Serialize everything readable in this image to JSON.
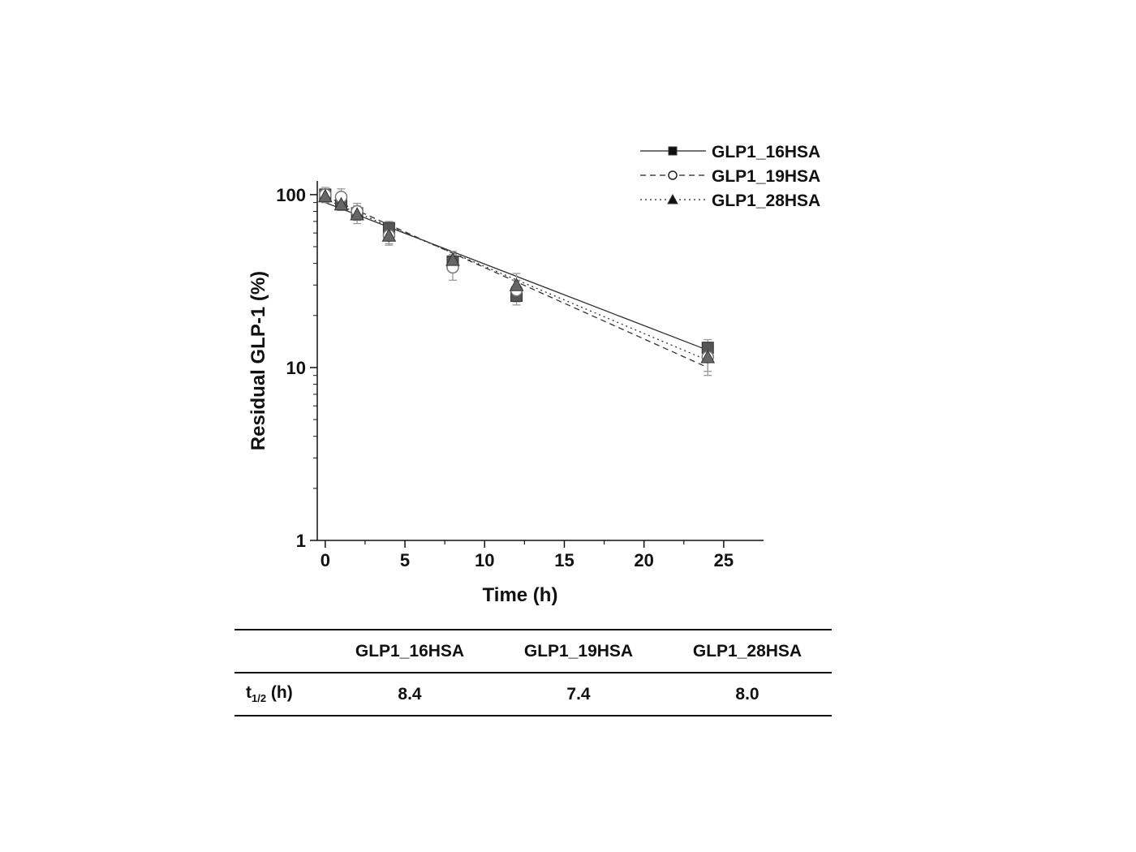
{
  "chart_data": {
    "type": "scatter",
    "xlabel": "Time (h)",
    "ylabel": "Residual GLP-1 (%)",
    "xlim": [
      -0.5,
      27.5
    ],
    "ylim": [
      1,
      120
    ],
    "yscale": "log",
    "xticks": [
      0,
      5,
      10,
      15,
      20,
      25
    ],
    "yticks": [
      1,
      10,
      100
    ],
    "legend_position": "top-right",
    "grid": false,
    "series": [
      {
        "name": "GLP1_16HSA",
        "marker": "square-filled",
        "line": "solid",
        "color": "#555555",
        "x": [
          0,
          1,
          2,
          4,
          8,
          12,
          24
        ],
        "y": [
          100,
          88,
          78,
          64,
          41,
          26,
          13
        ],
        "err": [
          7,
          6,
          6,
          6,
          4,
          3,
          1.5
        ],
        "fit": [
          90,
          12.6
        ]
      },
      {
        "name": "GLP1_19HSA",
        "marker": "circle-open",
        "line": "dashed",
        "color": "#777777",
        "x": [
          0,
          1,
          2,
          4,
          8,
          12,
          24
        ],
        "y": [
          100,
          97,
          80,
          58,
          38,
          28,
          11.5
        ],
        "err": [
          10,
          11,
          9,
          7,
          6,
          4,
          2.5
        ],
        "fit": [
          98,
          10
        ]
      },
      {
        "name": "GLP1_28HSA",
        "marker": "triangle-filled",
        "line": "dotted",
        "color": "#666666",
        "x": [
          0,
          1,
          2,
          4,
          8,
          12,
          24
        ],
        "y": [
          98,
          88,
          77,
          58,
          42,
          30,
          11.5
        ],
        "err": [
          8,
          7,
          9,
          6,
          5,
          5,
          2
        ],
        "fit": [
          94,
          11
        ]
      }
    ]
  },
  "table": {
    "headers": [
      "",
      "GLP1_16HSA",
      "GLP1_19HSA",
      "GLP1_28HSA"
    ],
    "row_label_main": "t",
    "row_label_sub": "1/2",
    "row_label_unit": " (h)",
    "values": [
      "8.4",
      "7.4",
      "8.0"
    ]
  }
}
